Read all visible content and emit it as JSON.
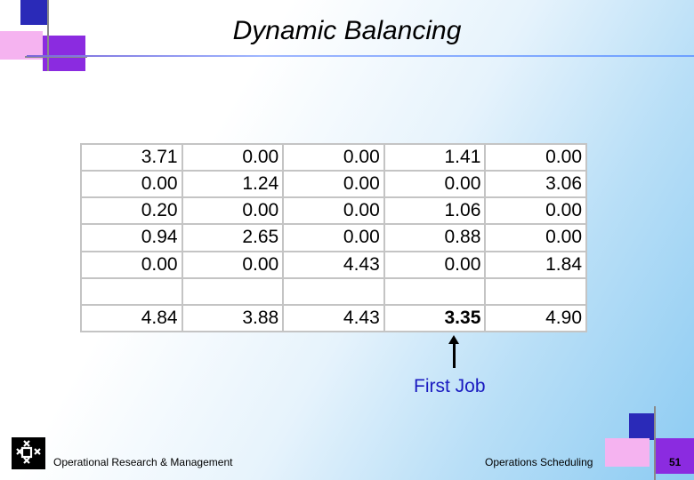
{
  "slide": {
    "title": "Dynamic Balancing",
    "annotation": "First Job",
    "footer_left": "Operational Research & Management",
    "footer_center": "Operations Scheduling",
    "page_number": "51"
  },
  "table": {
    "rows": [
      [
        "3.71",
        "0.00",
        "0.00",
        "1.41",
        "0.00"
      ],
      [
        "0.00",
        "1.24",
        "0.00",
        "0.00",
        "3.06"
      ],
      [
        "0.20",
        "0.00",
        "0.00",
        "1.06",
        "0.00"
      ],
      [
        "0.94",
        "2.65",
        "0.00",
        "0.88",
        "0.00"
      ],
      [
        "0.00",
        "0.00",
        "4.43",
        "0.00",
        "1.84"
      ]
    ],
    "totals": [
      "4.84",
      "3.88",
      "4.43",
      "3.35",
      "4.90"
    ],
    "highlighted_total_index": 3
  },
  "colors": {
    "annotation": "#1a1ac0",
    "deco_purple": "#8a2be2",
    "deco_blue": "#2020c0",
    "deco_pink": "#f0a0f0"
  },
  "icons": {
    "logo": "university-logo"
  }
}
